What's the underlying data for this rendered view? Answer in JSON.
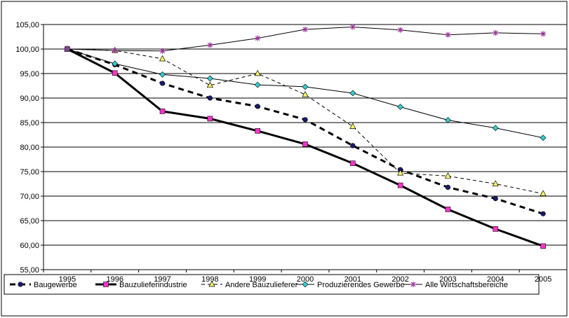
{
  "chart_data": {
    "type": "line",
    "title": "",
    "xlabel": "",
    "ylabel": "",
    "ylim": [
      55,
      105
    ],
    "yticks": [
      "55,00",
      "60,00",
      "65,00",
      "70,00",
      "75,00",
      "80,00",
      "85,00",
      "90,00",
      "95,00",
      "100,00",
      "105,00"
    ],
    "categories": [
      "1995",
      "1996",
      "1997",
      "1998",
      "1999",
      "2000",
      "2001",
      "2002",
      "2003",
      "2004",
      "2005"
    ],
    "grid": "horizontal",
    "legend_position": "bottom",
    "series": [
      {
        "name": "Baugewerbe",
        "color": "#000000",
        "marker": "circle",
        "marker_color": "#1a1a6e",
        "line": "dashed-bold",
        "values": [
          100,
          96.8,
          93,
          90,
          88.3,
          85.6,
          80.3,
          75.4,
          71.8,
          69.5,
          66.4
        ]
      },
      {
        "name": "Bauzulieferindustrie",
        "color": "#000000",
        "marker": "square",
        "marker_color": "#ff33cc",
        "line": "solid-bold",
        "values": [
          100,
          95.1,
          87.3,
          85.8,
          83.3,
          80.6,
          76.7,
          72.2,
          67.3,
          63.3,
          59.8
        ]
      },
      {
        "name": "Andere Bauzulieferer",
        "color": "#000000",
        "marker": "triangle",
        "marker_color": "#ffff66",
        "line": "dashed-thin",
        "values": [
          100,
          99.7,
          98,
          92.6,
          95,
          90.7,
          84.2,
          74.7,
          74.1,
          72.5,
          70.5
        ]
      },
      {
        "name": "Produzierendes Gewerbe",
        "color": "#000000",
        "marker": "diamond",
        "marker_color": "#33cccc",
        "line": "solid-thin",
        "values": [
          100,
          97,
          94.8,
          94,
          92.7,
          92.3,
          91,
          88.2,
          85.5,
          83.9,
          81.9
        ]
      },
      {
        "name": "Alle Wirtschaftsbereiche",
        "color": "#000000",
        "marker": "star",
        "marker_color": "#993399",
        "line": "solid-thin",
        "values": [
          100,
          99.7,
          99.6,
          100.8,
          102.2,
          104,
          104.5,
          103.9,
          102.9,
          103.3,
          103.1
        ]
      }
    ]
  }
}
